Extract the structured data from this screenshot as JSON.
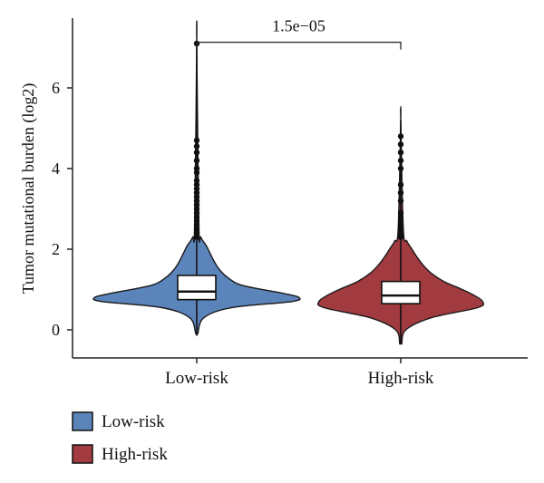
{
  "chart_data": {
    "type": "violin",
    "title": "",
    "xlabel": "",
    "ylabel": "Tumor mutational burden (log2)",
    "ylim": [
      -0.7,
      7.6
    ],
    "yticks": [
      0,
      2,
      4,
      6
    ],
    "categories": [
      "Low-risk",
      "High-risk"
    ],
    "series": [
      {
        "name": "Low-risk",
        "color": "#5b84bb",
        "box": {
          "q1": 0.75,
          "median": 0.95,
          "q3": 1.35
        },
        "whisker": [
          -0.1,
          2.2
        ],
        "range": [
          -0.15,
          7.1
        ],
        "density": [
          [
            -0.1,
            0.01
          ],
          [
            0.3,
            0.07
          ],
          [
            0.55,
            0.34
          ],
          [
            0.7,
            0.92
          ],
          [
            0.8,
            1.0
          ],
          [
            0.9,
            0.85
          ],
          [
            1.1,
            0.45
          ],
          [
            1.3,
            0.3
          ],
          [
            1.5,
            0.22
          ],
          [
            1.7,
            0.17
          ],
          [
            1.9,
            0.13
          ],
          [
            2.1,
            0.09
          ],
          [
            2.3,
            0.04
          ],
          [
            2.6,
            0.02
          ],
          [
            7.1,
            0.0
          ]
        ],
        "outliers": [
          2.3,
          2.4,
          2.5,
          2.6,
          2.7,
          2.8,
          2.9,
          3.0,
          3.1,
          3.2,
          3.3,
          3.4,
          3.5,
          3.6,
          3.7,
          3.9,
          4.0,
          4.2,
          4.4,
          4.55,
          4.7,
          7.1
        ]
      },
      {
        "name": "High-risk",
        "color": "#a23b3f",
        "box": {
          "q1": 0.65,
          "median": 0.85,
          "q3": 1.2
        },
        "whisker": [
          -0.3,
          2.3
        ],
        "range": [
          -0.35,
          5.2
        ],
        "density": [
          [
            -0.35,
            0.01
          ],
          [
            0.0,
            0.05
          ],
          [
            0.3,
            0.3
          ],
          [
            0.55,
            0.75
          ],
          [
            0.7,
            0.8
          ],
          [
            0.85,
            0.72
          ],
          [
            1.0,
            0.6
          ],
          [
            1.2,
            0.42
          ],
          [
            1.4,
            0.3
          ],
          [
            1.6,
            0.22
          ],
          [
            1.8,
            0.16
          ],
          [
            2.0,
            0.11
          ],
          [
            2.2,
            0.06
          ],
          [
            2.5,
            0.025
          ],
          [
            5.2,
            0.0
          ]
        ],
        "outliers": [
          2.3,
          2.35,
          2.4,
          2.5,
          2.6,
          2.7,
          2.8,
          2.9,
          3.2,
          3.4,
          3.6,
          4.0,
          4.2,
          4.4,
          4.6,
          4.8
        ]
      }
    ],
    "comparison": {
      "label": "1.5e−05",
      "between": [
        "Low-risk",
        "High-risk"
      ],
      "y": 7.2
    },
    "legend": {
      "placement": "bottom-left",
      "entries": [
        "Low-risk",
        "High-risk"
      ]
    },
    "grid": false
  }
}
